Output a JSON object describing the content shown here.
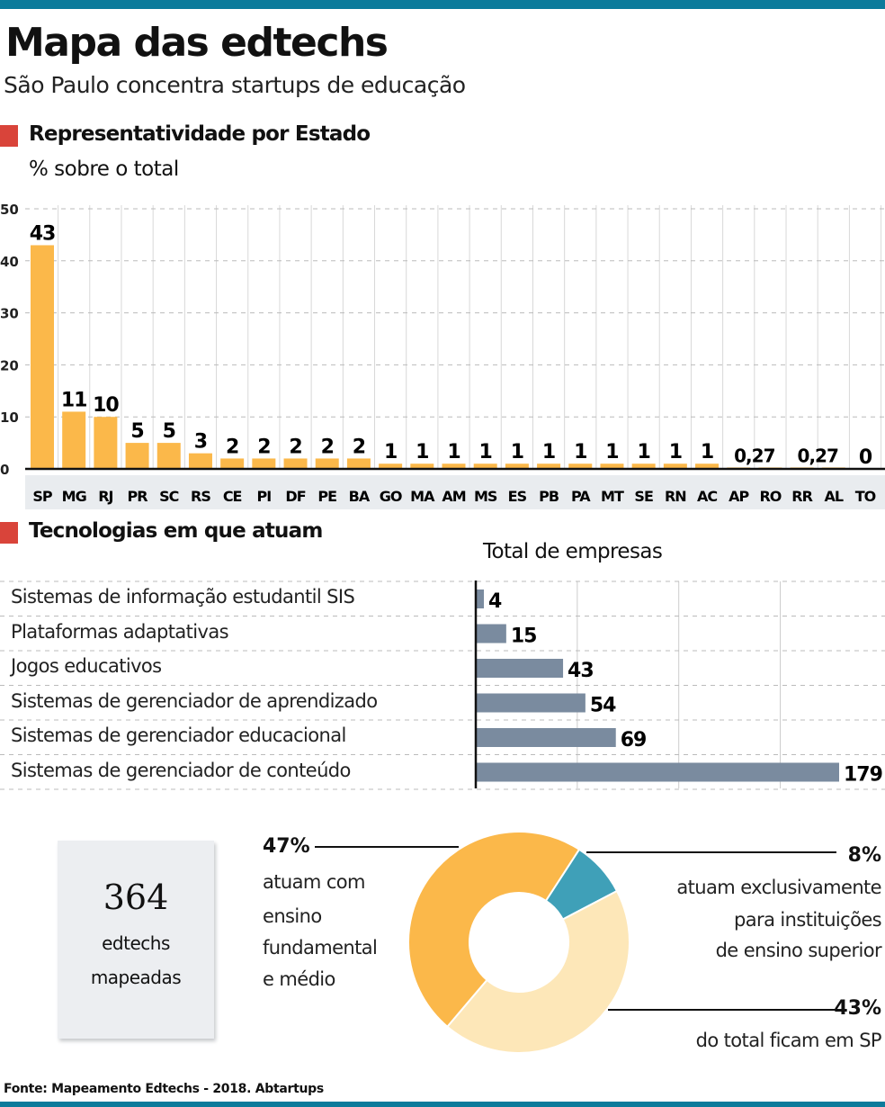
{
  "header": {
    "title": "Mapa das edtechs",
    "subtitle": "São Paulo concentra startups de educação"
  },
  "section1": {
    "title": "Representatividade por Estado",
    "unit": "% sobre o total"
  },
  "section2": {
    "title": "Tecnologias em que atuam",
    "axis_title": "Total de empresas"
  },
  "colors": {
    "accent_bar": "#0b7b9b",
    "section_marker": "#d9443a",
    "state_bars": "#fbb84a",
    "tech_bars": "#7a8b9f",
    "donut": [
      "#fbb84a",
      "#3fa0b8",
      "#fde7b8"
    ]
  },
  "chart_data": [
    {
      "type": "bar",
      "categories": [
        "SP",
        "MG",
        "RJ",
        "PR",
        "SC",
        "RS",
        "CE",
        "PI",
        "DF",
        "PE",
        "BA",
        "GO",
        "MA",
        "AM",
        "MS",
        "ES",
        "PB",
        "PA",
        "MT",
        "SE",
        "RN",
        "AC",
        "AP",
        "RO",
        "RR",
        "AL",
        "TO"
      ],
      "values": [
        43,
        11,
        10,
        5,
        5,
        3,
        2,
        2,
        2,
        2,
        2,
        1,
        1,
        1,
        1,
        1,
        1,
        1,
        1,
        1,
        1,
        1,
        0.27,
        0.27,
        0.27,
        0.27,
        0
      ],
      "data_labels": [
        "43",
        "11",
        "10",
        "5",
        "5",
        "3",
        "2",
        "2",
        "2",
        "2",
        "2",
        "1",
        "1",
        "1",
        "1",
        "1",
        "1",
        "1",
        "1",
        "1",
        "1",
        "1",
        "0,27",
        "",
        "0,27",
        "",
        "0"
      ],
      "yticks": [
        "0",
        "10",
        "20",
        "30",
        "40",
        "50"
      ],
      "ylim": [
        0,
        50
      ],
      "grid": true
    },
    {
      "type": "bar",
      "orientation": "horizontal",
      "categories": [
        "Sistemas de informação estudantil SIS",
        "Plataformas adaptativas",
        "Jogos educativos",
        "Sistemas de gerenciador de aprendizado",
        "Sistemas de gerenciador educacional",
        "Sistemas de gerenciador de conteúdo"
      ],
      "values": [
        4,
        15,
        43,
        54,
        69,
        179
      ],
      "xlim": [
        0,
        200
      ],
      "grid": true
    },
    {
      "type": "pie",
      "variant": "donut",
      "slices": [
        {
          "value": 47,
          "pct": "47%",
          "label": [
            "atuam com",
            "ensino",
            "fundamental",
            "e médio"
          ]
        },
        {
          "value": 8,
          "pct": "8%",
          "label": [
            "atuam exclusivamente",
            "para instituições",
            "de ensino superior"
          ]
        },
        {
          "value": 43,
          "pct": "43%",
          "label": [
            "do total ficam em SP"
          ]
        }
      ]
    }
  ],
  "summary": {
    "number": "364",
    "line1": "edtechs",
    "line2": "mapeadas"
  },
  "source": "Fonte: Mapeamento Edtechs - 2018. Abtartups"
}
